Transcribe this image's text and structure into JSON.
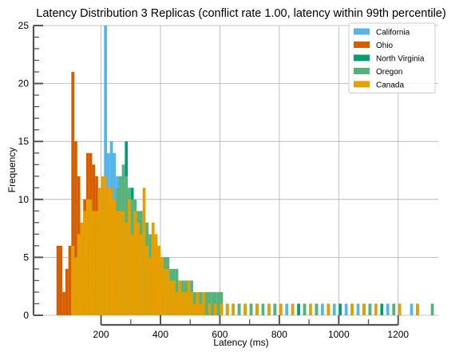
{
  "chart_data": {
    "type": "histogram",
    "title": "Latency Distribution 3 Replicas (conflict rate 1.00, latency within 99th percentile)",
    "xlabel": "Latency (ms)",
    "ylabel": "Frequency",
    "xlim": [
      5,
      1335
    ],
    "ylim": [
      0,
      25
    ],
    "xticks": [
      200,
      400,
      600,
      800,
      1000,
      1200
    ],
    "yticks": [
      0,
      5,
      10,
      15,
      20,
      25
    ],
    "grid": true,
    "legend_position": "top-right",
    "bin_width": 10,
    "series": [
      {
        "name": "California",
        "color": "#56b4e9",
        "bins": [
          [
            130,
            1
          ],
          [
            140,
            2
          ],
          [
            150,
            3
          ],
          [
            160,
            5
          ],
          [
            170,
            6
          ],
          [
            180,
            8
          ],
          [
            190,
            9
          ],
          [
            200,
            11
          ],
          [
            210,
            25
          ],
          [
            220,
            14
          ],
          [
            230,
            15
          ],
          [
            240,
            14
          ],
          [
            250,
            12
          ],
          [
            260,
            10
          ],
          [
            270,
            9
          ],
          [
            280,
            8
          ],
          [
            290,
            8
          ],
          [
            300,
            7
          ],
          [
            310,
            6
          ],
          [
            320,
            6
          ],
          [
            330,
            5
          ],
          [
            340,
            5
          ],
          [
            350,
            4
          ],
          [
            360,
            4
          ],
          [
            370,
            3
          ],
          [
            380,
            3
          ],
          [
            390,
            3
          ],
          [
            400,
            2
          ],
          [
            410,
            2
          ],
          [
            420,
            2
          ],
          [
            430,
            1
          ],
          [
            440,
            1
          ],
          [
            450,
            1
          ],
          [
            460,
            1
          ],
          [
            480,
            1
          ],
          [
            500,
            1
          ],
          [
            520,
            1
          ],
          [
            540,
            1
          ],
          [
            560,
            1
          ],
          [
            600,
            1
          ],
          [
            640,
            1
          ],
          [
            700,
            1
          ],
          [
            760,
            1
          ],
          [
            820,
            1
          ],
          [
            880,
            1
          ],
          [
            940,
            1
          ],
          [
            980,
            1
          ],
          [
            1020,
            1
          ],
          [
            1060,
            1
          ],
          [
            1100,
            1
          ],
          [
            1160,
            1
          ],
          [
            1240,
            1
          ]
        ]
      },
      {
        "name": "Ohio",
        "color": "#d55e00",
        "bins": [
          [
            50,
            6
          ],
          [
            60,
            6
          ],
          [
            70,
            2
          ],
          [
            80,
            4
          ],
          [
            90,
            6
          ],
          [
            100,
            21
          ],
          [
            110,
            15
          ],
          [
            120,
            12
          ],
          [
            130,
            7
          ],
          [
            140,
            10
          ],
          [
            150,
            14
          ],
          [
            160,
            14
          ],
          [
            170,
            13
          ],
          [
            180,
            12
          ],
          [
            190,
            10
          ],
          [
            200,
            9
          ],
          [
            210,
            8
          ],
          [
            220,
            6
          ],
          [
            230,
            5
          ],
          [
            240,
            4
          ],
          [
            250,
            3
          ],
          [
            260,
            2
          ],
          [
            270,
            2
          ],
          [
            280,
            1
          ],
          [
            290,
            1
          ]
        ]
      },
      {
        "name": "North Virginia",
        "color": "#009e73",
        "bins": [
          [
            180,
            3
          ],
          [
            200,
            5
          ],
          [
            220,
            7
          ],
          [
            240,
            9
          ],
          [
            260,
            12
          ],
          [
            280,
            15
          ],
          [
            300,
            11
          ],
          [
            320,
            8
          ],
          [
            340,
            6
          ],
          [
            360,
            5
          ],
          [
            380,
            4
          ],
          [
            400,
            4
          ],
          [
            420,
            3
          ],
          [
            440,
            3
          ],
          [
            460,
            2
          ],
          [
            480,
            2
          ],
          [
            500,
            2
          ],
          [
            520,
            1
          ],
          [
            540,
            1
          ],
          [
            580,
            1
          ],
          [
            620,
            1
          ],
          [
            660,
            1
          ],
          [
            720,
            1
          ],
          [
            780,
            1
          ],
          [
            860,
            1
          ],
          [
            920,
            1
          ],
          [
            1000,
            1
          ],
          [
            1080,
            1
          ],
          [
            1140,
            1
          ],
          [
            1200,
            1
          ]
        ]
      },
      {
        "name": "Oregon",
        "color": "#55b27a",
        "bins": [
          [
            160,
            2
          ],
          [
            170,
            3
          ],
          [
            180,
            4
          ],
          [
            190,
            6
          ],
          [
            200,
            7
          ],
          [
            210,
            8
          ],
          [
            220,
            8
          ],
          [
            230,
            9
          ],
          [
            240,
            10
          ],
          [
            250,
            11
          ],
          [
            260,
            12
          ],
          [
            270,
            13
          ],
          [
            280,
            12
          ],
          [
            290,
            11
          ],
          [
            300,
            10
          ],
          [
            310,
            10
          ],
          [
            320,
            9
          ],
          [
            330,
            9
          ],
          [
            340,
            8
          ],
          [
            350,
            8
          ],
          [
            360,
            7
          ],
          [
            370,
            7
          ],
          [
            380,
            6
          ],
          [
            390,
            6
          ],
          [
            400,
            5
          ],
          [
            410,
            5
          ],
          [
            420,
            5
          ],
          [
            430,
            4
          ],
          [
            440,
            4
          ],
          [
            450,
            4
          ],
          [
            460,
            3
          ],
          [
            470,
            3
          ],
          [
            480,
            3
          ],
          [
            490,
            3
          ],
          [
            500,
            3
          ],
          [
            510,
            2
          ],
          [
            520,
            2
          ],
          [
            530,
            2
          ],
          [
            540,
            2
          ],
          [
            550,
            2
          ],
          [
            560,
            2
          ],
          [
            570,
            2
          ],
          [
            580,
            2
          ],
          [
            590,
            2
          ],
          [
            600,
            2
          ],
          [
            620,
            1
          ],
          [
            640,
            1
          ],
          [
            660,
            1
          ],
          [
            680,
            1
          ],
          [
            700,
            1
          ],
          [
            720,
            1
          ],
          [
            740,
            1
          ],
          [
            760,
            1
          ],
          [
            780,
            1
          ],
          [
            800,
            1
          ],
          [
            840,
            1
          ],
          [
            880,
            1
          ],
          [
            920,
            1
          ],
          [
            960,
            1
          ],
          [
            1040,
            1
          ],
          [
            1100,
            1
          ],
          [
            1180,
            1
          ],
          [
            1260,
            1
          ],
          [
            1310,
            1
          ]
        ]
      },
      {
        "name": "Canada",
        "color": "#e69f00",
        "bins": [
          [
            100,
            6
          ],
          [
            110,
            5
          ],
          [
            120,
            7
          ],
          [
            130,
            8
          ],
          [
            140,
            9
          ],
          [
            150,
            10
          ],
          [
            160,
            10
          ],
          [
            170,
            9
          ],
          [
            180,
            9
          ],
          [
            190,
            11
          ],
          [
            200,
            12
          ],
          [
            210,
            12
          ],
          [
            220,
            11
          ],
          [
            230,
            11
          ],
          [
            240,
            10
          ],
          [
            250,
            9
          ],
          [
            260,
            9
          ],
          [
            270,
            9
          ],
          [
            280,
            8
          ],
          [
            290,
            10
          ],
          [
            300,
            7
          ],
          [
            310,
            9
          ],
          [
            320,
            8
          ],
          [
            330,
            7
          ],
          [
            340,
            11
          ],
          [
            350,
            6
          ],
          [
            360,
            5
          ],
          [
            370,
            8
          ],
          [
            380,
            7
          ],
          [
            390,
            6
          ],
          [
            400,
            5
          ],
          [
            410,
            4
          ],
          [
            420,
            4
          ],
          [
            430,
            3
          ],
          [
            440,
            3
          ],
          [
            450,
            2
          ],
          [
            460,
            3
          ],
          [
            470,
            2
          ],
          [
            480,
            2
          ],
          [
            490,
            3
          ],
          [
            500,
            2
          ],
          [
            510,
            1
          ],
          [
            520,
            2
          ],
          [
            530,
            1
          ],
          [
            540,
            2
          ],
          [
            560,
            1
          ],
          [
            580,
            1
          ],
          [
            600,
            1
          ],
          [
            620,
            1
          ],
          [
            640,
            1
          ],
          [
            680,
            1
          ],
          [
            720,
            1
          ],
          [
            760,
            1
          ],
          [
            800,
            1
          ],
          [
            840,
            1
          ],
          [
            900,
            1
          ],
          [
            960,
            1
          ],
          [
            1040,
            1
          ],
          [
            1080,
            1
          ],
          [
            1120,
            1
          ],
          [
            1200,
            1
          ],
          [
            1260,
            1
          ]
        ]
      }
    ]
  }
}
